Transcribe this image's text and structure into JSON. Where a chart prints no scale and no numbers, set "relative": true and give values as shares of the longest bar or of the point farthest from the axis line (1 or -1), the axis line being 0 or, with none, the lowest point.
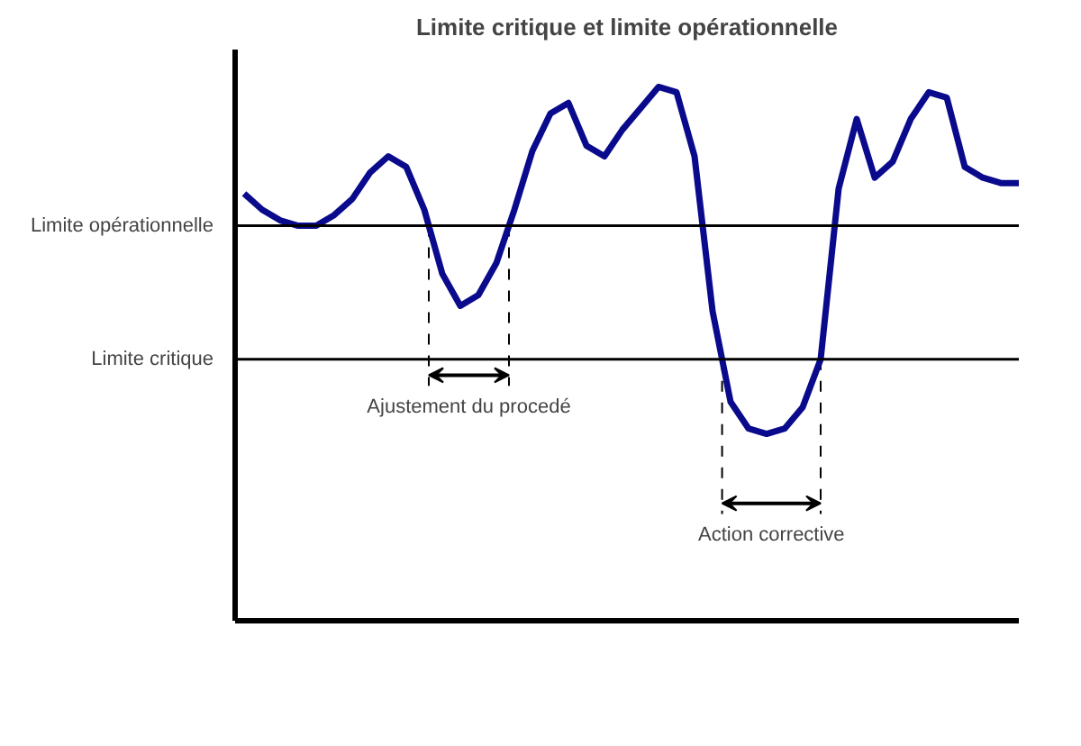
{
  "chart_data": {
    "type": "line",
    "title": "Limite critique et limite opérationnelle",
    "relative": true,
    "categories": [
      null,
      null,
      null,
      null,
      null,
      null,
      null,
      null,
      null,
      null,
      null,
      null,
      null,
      null,
      null,
      null,
      null,
      null,
      null,
      null,
      null,
      null,
      null,
      null,
      null,
      null,
      null,
      null,
      null,
      null,
      null,
      null,
      null,
      null,
      null,
      null,
      null,
      null,
      null,
      null,
      null,
      null,
      null,
      null
    ],
    "series": [
      {
        "color": "#0a0a8c",
        "values": [
          0.8,
          0.77,
          0.75,
          0.74,
          0.74,
          0.76,
          0.79,
          0.84,
          0.87,
          0.85,
          0.77,
          0.65,
          0.59,
          0.61,
          0.67,
          0.77,
          0.88,
          0.95,
          0.97,
          0.89,
          0.87,
          0.92,
          0.96,
          1.0,
          0.99,
          0.87,
          0.58,
          0.41,
          0.36,
          0.35,
          0.36,
          0.4,
          0.49,
          0.81,
          0.94,
          0.83,
          0.86,
          0.94,
          0.99,
          0.98,
          0.85,
          0.83,
          0.82,
          0.82
        ]
      }
    ],
    "ref_lines": [
      {
        "axis": "y",
        "value": 0.74,
        "label": "Limite opérationnelle"
      },
      {
        "axis": "y",
        "value": 0.49,
        "label": "Limite critique"
      }
    ],
    "annotations": [
      "Ajustement du procedé",
      "Action corrective"
    ],
    "grid": false,
    "marker": "none",
    "line_style": "solid"
  }
}
